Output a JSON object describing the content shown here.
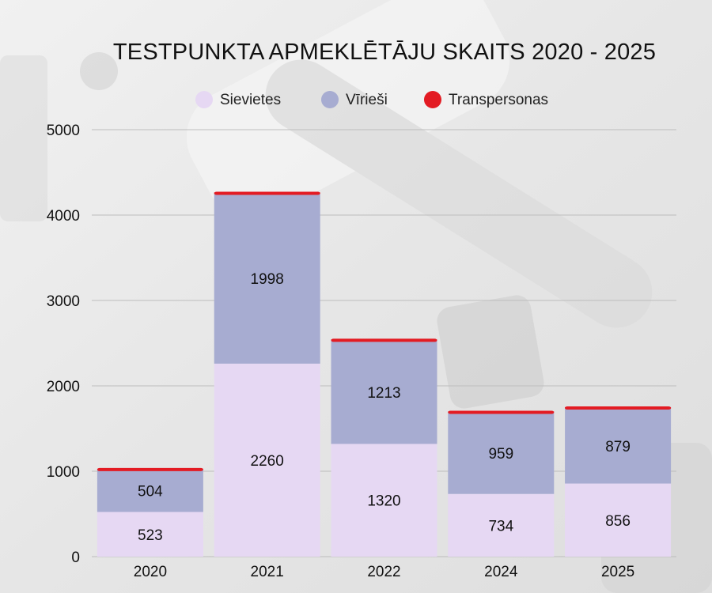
{
  "chart_data": {
    "type": "bar",
    "stacked": true,
    "title": "TESTPUNKTA APMEKLĒTĀJU SKAITS 2020 - 2025",
    "categories": [
      "2020",
      "2021",
      "2022",
      "2024",
      "2025"
    ],
    "series": [
      {
        "name": "Sievietes",
        "color": "#e6d8f3",
        "values": [
          523,
          2260,
          1320,
          734,
          856
        ]
      },
      {
        "name": "Vīrieši",
        "color": "#a7acd1",
        "values": [
          504,
          1998,
          1213,
          959,
          879
        ]
      },
      {
        "name": "Transpersonas",
        "color": "#e31b23",
        "values": [
          2,
          6,
          10,
          6,
          15
        ]
      }
    ],
    "data_labels": {
      "Sievietes": [
        "523",
        "2260",
        "1320",
        "734",
        "856"
      ],
      "Vīrieši": [
        "504",
        "1998",
        "1213",
        "959",
        "879"
      ]
    },
    "ylim": [
      0,
      5000
    ],
    "yticks": [
      0,
      1000,
      2000,
      3000,
      4000,
      5000
    ],
    "ytick_labels": [
      "0",
      "1000",
      "2000",
      "3000",
      "4000",
      "5000"
    ],
    "xlabel": "",
    "ylabel": "",
    "grid": true,
    "legend_position": "top-center"
  }
}
